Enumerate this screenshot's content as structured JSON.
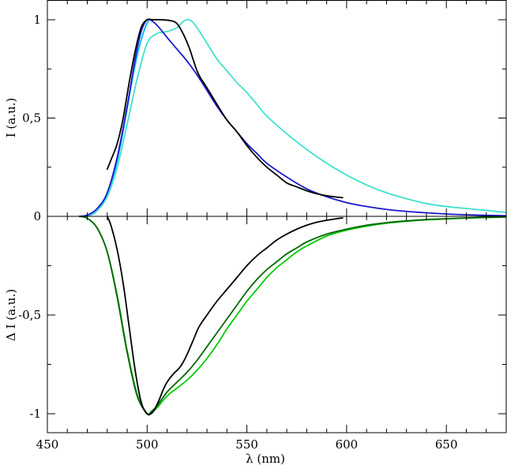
{
  "chart_data": {
    "type": "line",
    "xlabel": "λ (nm)",
    "xlim": [
      450,
      680
    ],
    "xticks": [
      450,
      500,
      550,
      600,
      650
    ],
    "grid": false,
    "legend": "none",
    "panels": [
      {
        "id": "top",
        "ylabel": "I (a.u.)",
        "ylim": [
          0,
          1.1
        ],
        "yticks": [
          {
            "value": 0,
            "label": "0"
          },
          {
            "value": 0.5,
            "label": "0,5"
          },
          {
            "value": 1,
            "label": "1"
          }
        ],
        "series": [
          {
            "color": "#00b4ff",
            "x": [
              466,
              470,
              474,
              478,
              481,
              484,
              487,
              490,
              493,
              496,
              499,
              501
            ],
            "y": [
              0,
              0.003,
              0.02,
              0.07,
              0.14,
              0.24,
              0.38,
              0.55,
              0.72,
              0.86,
              0.96,
              1.0
            ]
          },
          {
            "color": "#40e0d0",
            "x": [
              466,
              470,
              475,
              480,
              485,
              490,
              495,
              500,
              505,
              510,
              515,
              518,
              520,
              522,
              525,
              530,
              535,
              540,
              545,
              550,
              555,
              560,
              570,
              580,
              590,
              600,
              610,
              620,
              630,
              640,
              650,
              660,
              670,
              680
            ],
            "y": [
              0,
              0.005,
              0.03,
              0.1,
              0.25,
              0.47,
              0.7,
              0.88,
              0.93,
              0.94,
              0.96,
              0.99,
              1.0,
              0.995,
              0.96,
              0.88,
              0.8,
              0.74,
              0.68,
              0.63,
              0.57,
              0.51,
              0.42,
              0.34,
              0.27,
              0.21,
              0.16,
              0.12,
              0.09,
              0.065,
              0.05,
              0.04,
              0.03,
              0.02
            ]
          },
          {
            "color": "#1a1acc",
            "x": [
              466,
              470,
              475,
              480,
              485,
              490,
              494,
              497,
              500,
              503,
              506,
              510,
              515,
              520,
              525,
              530,
              535,
              540,
              545,
              550,
              555,
              560,
              570,
              580,
              590,
              600,
              610,
              620,
              630,
              640,
              650,
              660,
              670,
              680
            ],
            "y": [
              0,
              0.006,
              0.04,
              0.12,
              0.3,
              0.56,
              0.8,
              0.94,
              1.0,
              0.99,
              0.96,
              0.91,
              0.85,
              0.79,
              0.72,
              0.64,
              0.56,
              0.49,
              0.43,
              0.37,
              0.32,
              0.27,
              0.2,
              0.14,
              0.1,
              0.07,
              0.05,
              0.035,
              0.025,
              0.018,
              0.012,
              0.008,
              0.005,
              0.003
            ]
          },
          {
            "color": "#000000",
            "x": [
              480,
              482,
              485,
              488,
              491,
              494,
              497,
              500,
              503,
              507,
              512,
              515,
              518,
              521,
              523,
              525,
              527,
              529,
              532,
              535,
              540,
              545,
              550,
              555,
              560,
              565,
              570,
              575,
              580,
              585,
              590,
              595,
              598
            ],
            "y": [
              0.24,
              0.29,
              0.37,
              0.5,
              0.68,
              0.84,
              0.96,
              1.0,
              1.0,
              1.0,
              0.995,
              0.98,
              0.93,
              0.86,
              0.8,
              0.74,
              0.7,
              0.67,
              0.62,
              0.57,
              0.49,
              0.43,
              0.36,
              0.3,
              0.25,
              0.21,
              0.17,
              0.15,
              0.13,
              0.115,
              0.105,
              0.098,
              0.095
            ]
          }
        ]
      },
      {
        "id": "bottom",
        "ylabel": "Δ I (a.u.)",
        "ylim": [
          -1.1,
          0
        ],
        "yticks": [
          {
            "value": -0.5,
            "label": "-0,5"
          },
          {
            "value": -1,
            "label": "-1"
          }
        ],
        "series": [
          {
            "color": "#00cc00",
            "x": [
              466,
              470,
              475,
              480,
              485,
              490,
              495,
              500,
              502,
              505,
              510,
              515,
              520,
              525,
              530,
              535,
              540,
              545,
              550,
              555,
              560,
              565,
              570,
              575,
              580,
              590,
              600,
              610,
              620,
              630,
              640,
              650,
              660,
              670,
              680
            ],
            "y": [
              0,
              -0.01,
              -0.06,
              -0.18,
              -0.4,
              -0.68,
              -0.9,
              -1.0,
              -0.995,
              -0.97,
              -0.91,
              -0.87,
              -0.83,
              -0.78,
              -0.72,
              -0.65,
              -0.57,
              -0.5,
              -0.43,
              -0.37,
              -0.31,
              -0.26,
              -0.22,
              -0.18,
              -0.15,
              -0.1,
              -0.07,
              -0.05,
              -0.035,
              -0.025,
              -0.018,
              -0.013,
              -0.009,
              -0.006,
              -0.004
            ]
          },
          {
            "color": "#006600",
            "x": [
              466,
              470,
              475,
              480,
              485,
              490,
              495,
              500,
              502,
              505,
              510,
              515,
              520,
              525,
              530,
              535,
              540,
              545,
              550,
              555,
              560,
              565,
              570,
              575,
              580,
              590,
              600,
              610,
              620,
              630,
              640,
              650,
              660,
              670,
              680
            ],
            "y": [
              0,
              -0.01,
              -0.06,
              -0.18,
              -0.41,
              -0.69,
              -0.91,
              -1.0,
              -0.99,
              -0.96,
              -0.89,
              -0.84,
              -0.79,
              -0.73,
              -0.66,
              -0.59,
              -0.52,
              -0.45,
              -0.38,
              -0.32,
              -0.27,
              -0.23,
              -0.19,
              -0.16,
              -0.13,
              -0.09,
              -0.065,
              -0.045,
              -0.032,
              -0.023,
              -0.016,
              -0.012,
              -0.008,
              -0.005,
              -0.003
            ]
          },
          {
            "color": "#000000",
            "x": [
              480,
              482,
              485,
              488,
              491,
              494,
              497,
              500,
              503,
              506,
              508,
              510,
              513,
              516,
              518,
              520,
              523,
              526,
              530,
              535,
              540,
              545,
              550,
              555,
              560,
              565,
              570,
              575,
              580,
              585,
              590,
              595,
              598
            ],
            "y": [
              0,
              -0.05,
              -0.17,
              -0.34,
              -0.56,
              -0.78,
              -0.94,
              -1.0,
              -0.99,
              -0.93,
              -0.88,
              -0.84,
              -0.8,
              -0.77,
              -0.74,
              -0.7,
              -0.63,
              -0.56,
              -0.5,
              -0.43,
              -0.37,
              -0.31,
              -0.25,
              -0.2,
              -0.16,
              -0.12,
              -0.09,
              -0.065,
              -0.045,
              -0.03,
              -0.02,
              -0.012,
              -0.008
            ]
          }
        ]
      }
    ]
  }
}
